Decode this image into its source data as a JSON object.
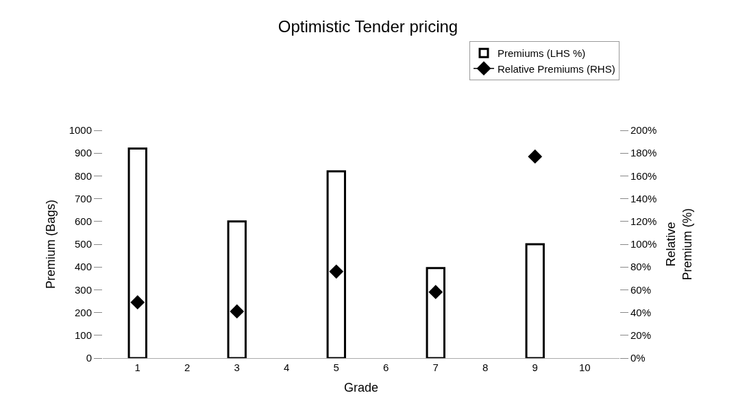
{
  "chart_data": {
    "type": "bar",
    "title": "Optimistic Tender pricing",
    "xlabel": "Grade",
    "ylabel": "Premium (Bags)",
    "y2label": "Relative\nPremium (%)",
    "categories": [
      "1",
      "2",
      "3",
      "4",
      "5",
      "6",
      "7",
      "8",
      "9",
      "10"
    ],
    "series": [
      {
        "name": "Premiums (LHS %)",
        "color": "#ffffff",
        "values": [
          920,
          null,
          600,
          null,
          820,
          null,
          395,
          null,
          500,
          null
        ]
      },
      {
        "name": "Relative Premiums (RHS)",
        "type": "scatter",
        "axis": "y2",
        "color": "#000000",
        "marker": "diamond",
        "line_style": "solid",
        "values": [
          49,
          null,
          41,
          null,
          76,
          null,
          58,
          null,
          177,
          null
        ]
      }
    ],
    "ylim": [
      0,
      1000
    ],
    "yticks": [
      0,
      100,
      200,
      300,
      400,
      500,
      600,
      700,
      800,
      900,
      1000
    ],
    "y2lim": [
      0,
      200
    ],
    "y2ticks": [
      {
        "value": 0,
        "label": "0%"
      },
      {
        "value": 20,
        "label": "20%"
      },
      {
        "value": 40,
        "label": "40%"
      },
      {
        "value": 60,
        "label": "60%"
      },
      {
        "value": 80,
        "label": "80%"
      },
      {
        "value": 100,
        "label": "100%"
      },
      {
        "value": 120,
        "label": "120%"
      },
      {
        "value": 140,
        "label": "140%"
      },
      {
        "value": 160,
        "label": "160%"
      },
      {
        "value": 180,
        "label": "180%"
      },
      {
        "value": 200,
        "label": "200%"
      }
    ],
    "legend": "top right"
  }
}
